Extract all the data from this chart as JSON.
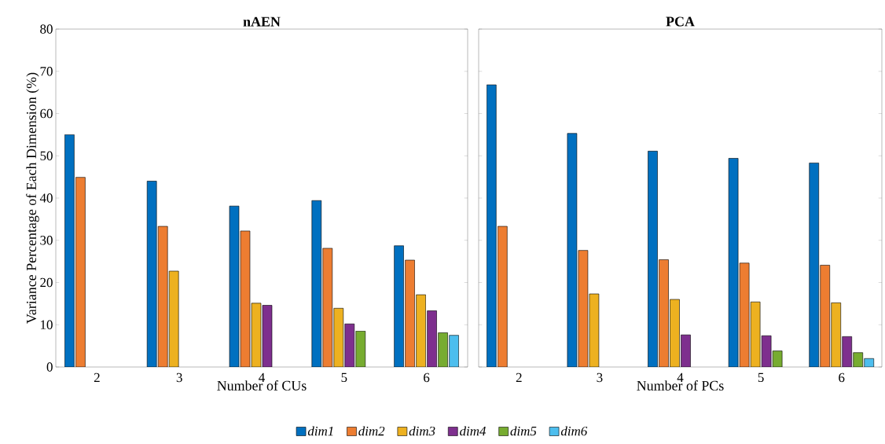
{
  "chart_data": [
    {
      "type": "bar",
      "title": "nAEN",
      "xlabel": "Number of CUs",
      "ylabel": "Variance Percentage of Each Dimension (%)",
      "categories": [
        "2",
        "3",
        "4",
        "5",
        "6"
      ],
      "series": [
        {
          "name": "dim1",
          "color": "#0070c0",
          "values": [
            55.0,
            44.0,
            38.1,
            39.4,
            28.7
          ]
        },
        {
          "name": "dim2",
          "color": "#ed7d31",
          "values": [
            44.9,
            33.3,
            32.2,
            28.1,
            25.3
          ]
        },
        {
          "name": "dim3",
          "color": "#edb120",
          "values": [
            null,
            22.7,
            15.1,
            13.9,
            17.1
          ]
        },
        {
          "name": "dim4",
          "color": "#7e2f8e",
          "values": [
            null,
            null,
            14.6,
            10.2,
            13.3
          ]
        },
        {
          "name": "dim5",
          "color": "#77ac30",
          "values": [
            null,
            null,
            null,
            8.5,
            8.1
          ]
        },
        {
          "name": "dim6",
          "color": "#4dbeee",
          "values": [
            null,
            null,
            null,
            null,
            7.5
          ]
        }
      ],
      "ylim": [
        0,
        80
      ],
      "yticks": [
        0,
        10,
        20,
        30,
        40,
        50,
        60,
        70,
        80
      ],
      "legend": "bottom"
    },
    {
      "type": "bar",
      "title": "PCA",
      "xlabel": "Number of PCs",
      "categories": [
        "2",
        "3",
        "4",
        "5",
        "6"
      ],
      "series": [
        {
          "color": "#0070c0",
          "values": [
            66.8,
            55.3,
            51.1,
            49.4,
            48.3
          ]
        },
        {
          "color": "#ed7d31",
          "values": [
            33.3,
            27.6,
            25.4,
            24.6,
            24.1
          ]
        },
        {
          "color": "#edb120",
          "values": [
            null,
            17.3,
            16.0,
            15.4,
            15.2
          ]
        },
        {
          "color": "#7e2f8e",
          "values": [
            null,
            null,
            7.6,
            7.4,
            7.2
          ]
        },
        {
          "color": "#77ac30",
          "values": [
            null,
            null,
            null,
            3.8,
            3.4
          ]
        },
        {
          "color": "#4dbeee",
          "values": [
            null,
            null,
            null,
            null,
            2.0
          ]
        }
      ],
      "ylim": [
        0,
        80
      ],
      "yticks": [
        0,
        10,
        20,
        30,
        40,
        50,
        60,
        70,
        80
      ],
      "tick_labels": "x"
    }
  ]
}
